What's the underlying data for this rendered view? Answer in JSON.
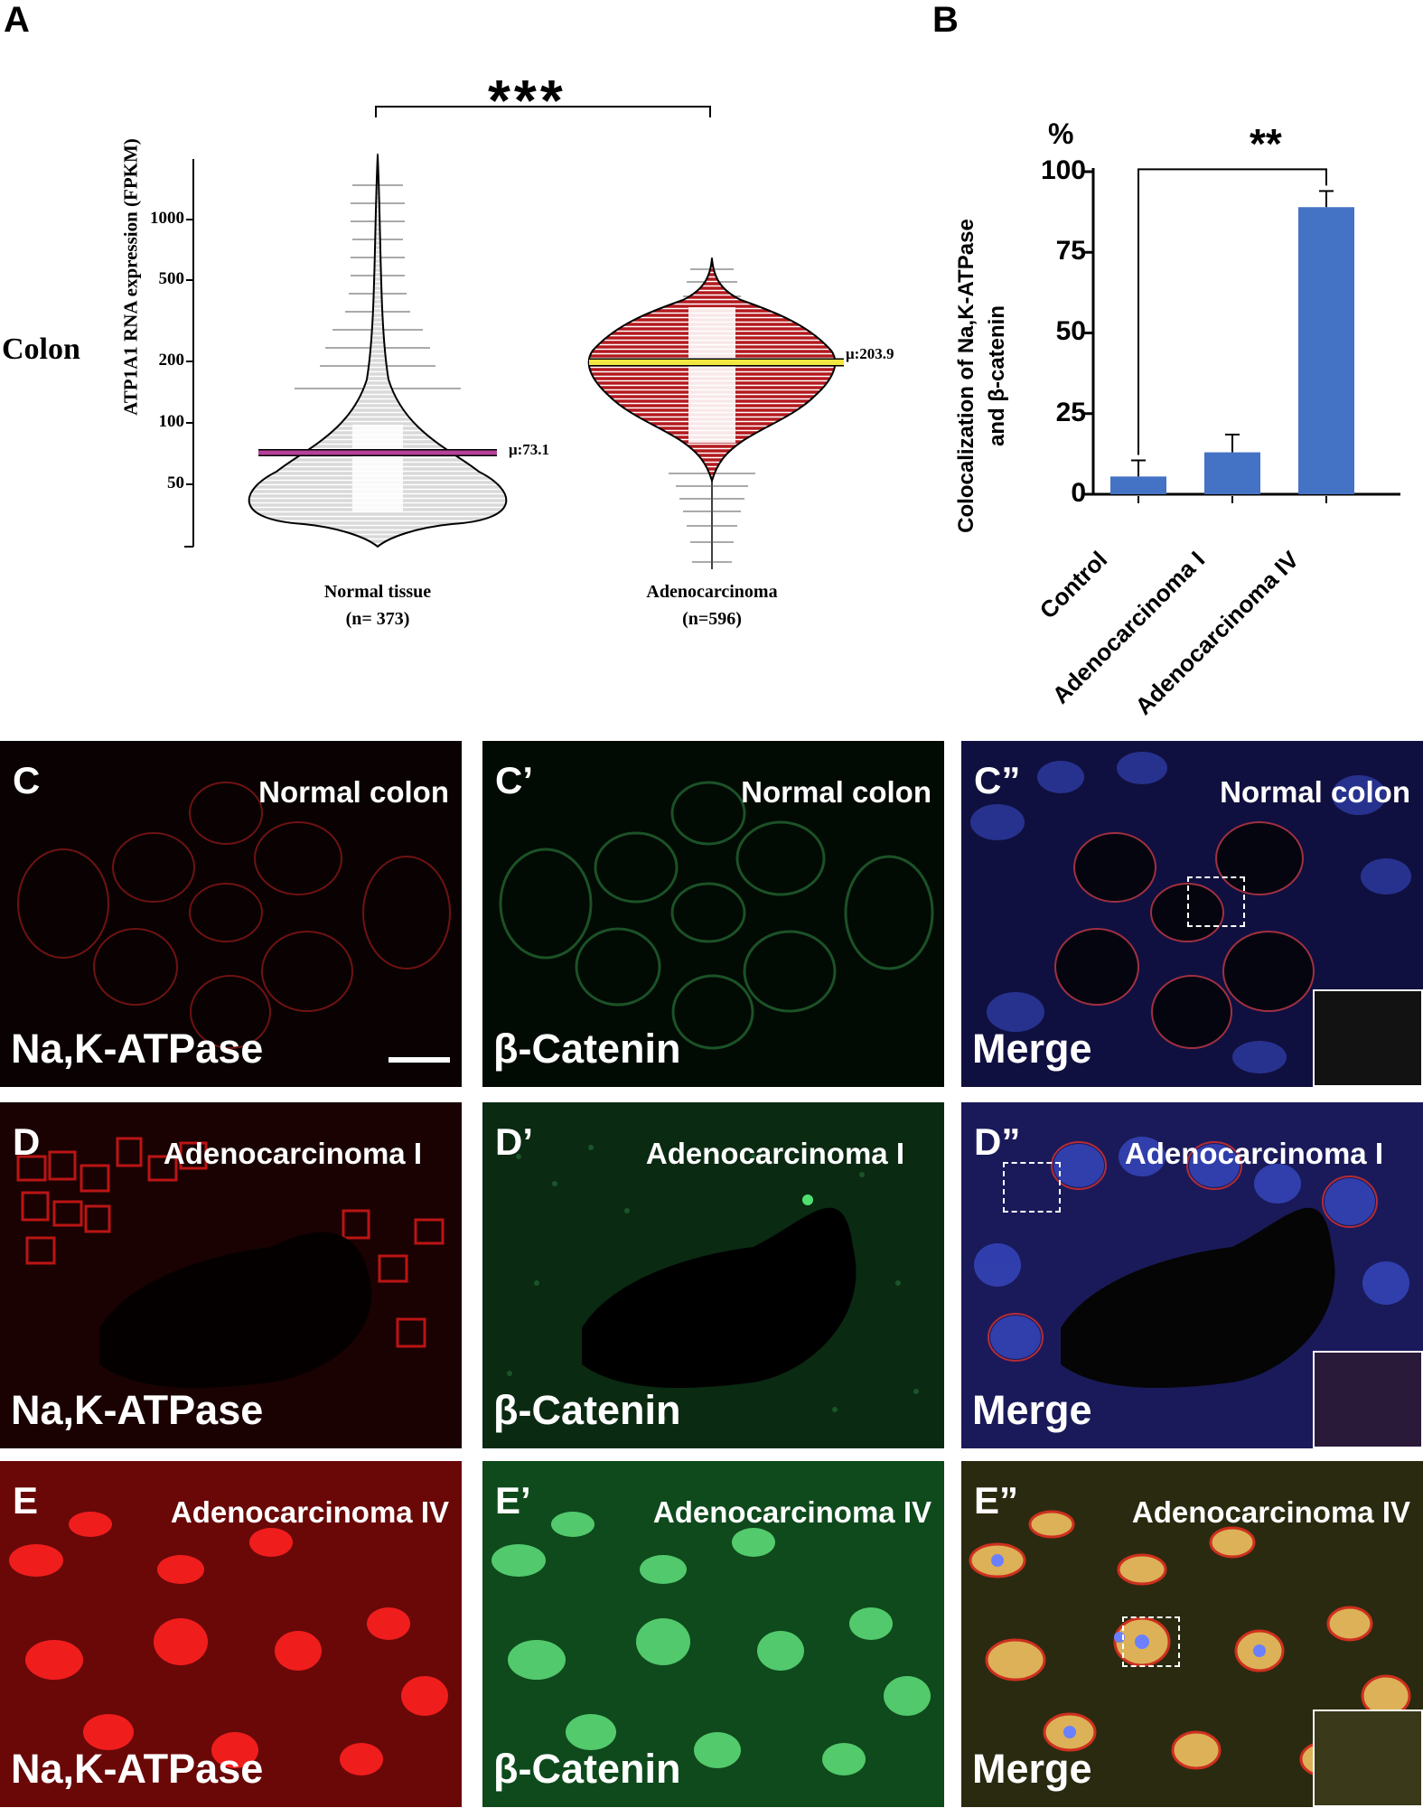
{
  "figure": {
    "panel_A": {
      "letter": "A",
      "row_label": "Colon",
      "significance": "***",
      "ylabel": "ATP1A1 RNA expression (FPKM)",
      "yticks": [
        "1000",
        "500",
        "200",
        "100",
        "50"
      ],
      "groups": [
        {
          "name": "Normal tissue",
          "n": "(n= 373)",
          "mean_label": "μ:73.1",
          "mean": 73.1,
          "fill": "#d9d9d9",
          "mean_line_color": "#b5409a"
        },
        {
          "name": "Adenocarcinoma",
          "n": "(n=596)",
          "mean_label": "μ:203.9",
          "mean": 203.9,
          "fill": "#b3191e",
          "mean_line_color": "#f2e640"
        }
      ]
    },
    "panel_B": {
      "letter": "B",
      "unit": "%",
      "significance": "**",
      "ylabel_line1": "Colocalization of Na,K-ATPase",
      "ylabel_line2": "and β-catenin",
      "yticks": [
        "100",
        "75",
        "50",
        "25",
        "0"
      ]
    },
    "micrographs": [
      {
        "id": "C",
        "letter": "C",
        "condition": "Normal colon",
        "stain": "Na,K-ATPase"
      },
      {
        "id": "C1",
        "letter": "C’",
        "condition": "Normal colon",
        "stain": "β-Catenin"
      },
      {
        "id": "C2",
        "letter": "C”",
        "condition": "Normal colon",
        "stain": "Merge"
      },
      {
        "id": "D",
        "letter": "D",
        "condition": "Adenocarcinoma I",
        "stain": "Na,K-ATPase"
      },
      {
        "id": "D1",
        "letter": "D’",
        "condition": "Adenocarcinoma I",
        "stain": "β-Catenin"
      },
      {
        "id": "D2",
        "letter": "D”",
        "condition": "Adenocarcinoma I",
        "stain": "Merge"
      },
      {
        "id": "E",
        "letter": "E",
        "condition": "Adenocarcinoma IV",
        "stain": "Na,K-ATPase"
      },
      {
        "id": "E1",
        "letter": "E’",
        "condition": "Adenocarcinoma IV",
        "stain": "β-Catenin"
      },
      {
        "id": "E2",
        "letter": "E”",
        "condition": "Adenocarcinoma IV",
        "stain": "Merge"
      }
    ],
    "colors": {
      "bar": "#4472c4",
      "red_channel": "#e01818",
      "green_channel": "#25b84a",
      "blue_channel": "#3a4fd0"
    }
  },
  "chart_data": {
    "type": "bar",
    "categories": [
      "Control",
      "Adenocarcinoma I",
      "Adenocarcinoma IV"
    ],
    "values": [
      5.5,
      13,
      89
    ],
    "errors": [
      5,
      5.5,
      5
    ],
    "ylim": [
      0,
      100
    ],
    "yticks": [
      0,
      25,
      50,
      75,
      100
    ],
    "xlabel": "",
    "ylabel": "Colocalization of Na,K-ATPase and β-catenin",
    "unit": "%",
    "significance": {
      "between": [
        "Control",
        "Adenocarcinoma IV"
      ],
      "label": "**"
    }
  }
}
